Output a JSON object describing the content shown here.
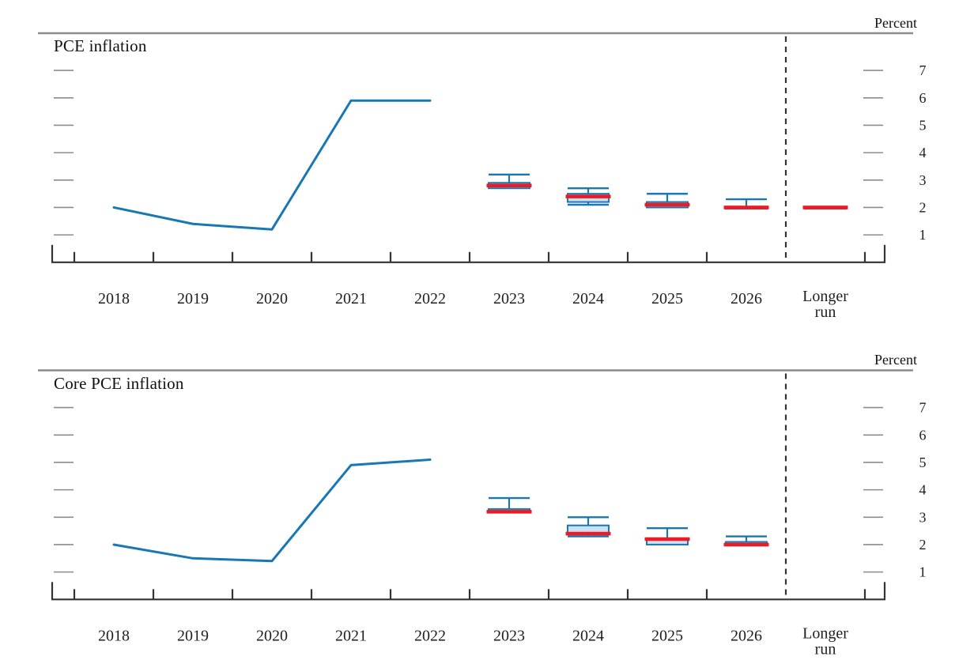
{
  "colors": {
    "line_blue": "#1878b4",
    "box_fill": "#cadff2",
    "box_stroke": "#1878b4",
    "median_red": "#ec1b23",
    "rule_gray": "#8c8c8c",
    "axis_dark": "#333333",
    "tick_gray": "#8c8c8c",
    "text_dark": "#1f1f1f",
    "dashed_line": "#333333"
  },
  "chart_data": [
    {
      "type": "line",
      "subtype": "history-line-with-projection-box-whiskers",
      "title": "PCE inflation",
      "ylabel": "Percent",
      "x_categories": [
        "2018",
        "2019",
        "2020",
        "2021",
        "2022",
        "2023",
        "2024",
        "2025",
        "2026",
        "Longer run"
      ],
      "y_ticks": [
        "1",
        "2",
        "3",
        "4",
        "5",
        "6",
        "7"
      ],
      "ylim": [
        0,
        8.4
      ],
      "grid": "off",
      "legend": "none",
      "history": {
        "years": [
          2018,
          2019,
          2020,
          2021,
          2022
        ],
        "values": [
          2.0,
          1.4,
          1.2,
          5.9,
          5.9
        ]
      },
      "projections": [
        {
          "year": "2023",
          "median": 2.8,
          "central_tendency": [
            2.7,
            2.9
          ],
          "range": [
            2.7,
            3.2
          ]
        },
        {
          "year": "2024",
          "median": 2.4,
          "central_tendency": [
            2.2,
            2.5
          ],
          "range": [
            2.1,
            2.7
          ]
        },
        {
          "year": "2025",
          "median": 2.1,
          "central_tendency": [
            2.0,
            2.2
          ],
          "range": [
            2.0,
            2.5
          ]
        },
        {
          "year": "2026",
          "median": 2.0,
          "central_tendency": [
            2.0,
            2.0
          ],
          "range": [
            2.0,
            2.3
          ]
        },
        {
          "year": "Longer run",
          "median": 2.0,
          "central_tendency": [
            2.0,
            2.0
          ],
          "range": [
            2.0,
            2.0
          ]
        }
      ]
    },
    {
      "type": "line",
      "subtype": "history-line-with-projection-box-whiskers",
      "title": "Core PCE inflation",
      "ylabel": "Percent",
      "x_categories": [
        "2018",
        "2019",
        "2020",
        "2021",
        "2022",
        "2023",
        "2024",
        "2025",
        "2026",
        "Longer run"
      ],
      "y_ticks": [
        "1",
        "2",
        "3",
        "4",
        "5",
        "6",
        "7"
      ],
      "ylim": [
        0,
        8.4
      ],
      "grid": "off",
      "legend": "none",
      "history": {
        "years": [
          2018,
          2019,
          2020,
          2021,
          2022
        ],
        "values": [
          2.0,
          1.5,
          1.4,
          4.9,
          5.1
        ]
      },
      "projections": [
        {
          "year": "2023",
          "median": 3.2,
          "central_tendency": [
            3.2,
            3.3
          ],
          "range": [
            3.2,
            3.7
          ]
        },
        {
          "year": "2024",
          "median": 2.4,
          "central_tendency": [
            2.4,
            2.7
          ],
          "range": [
            2.3,
            3.0
          ]
        },
        {
          "year": "2025",
          "median": 2.2,
          "central_tendency": [
            2.0,
            2.2
          ],
          "range": [
            2.0,
            2.6
          ]
        },
        {
          "year": "2026",
          "median": 2.0,
          "central_tendency": [
            2.0,
            2.1
          ],
          "range": [
            2.0,
            2.3
          ]
        }
      ]
    }
  ]
}
